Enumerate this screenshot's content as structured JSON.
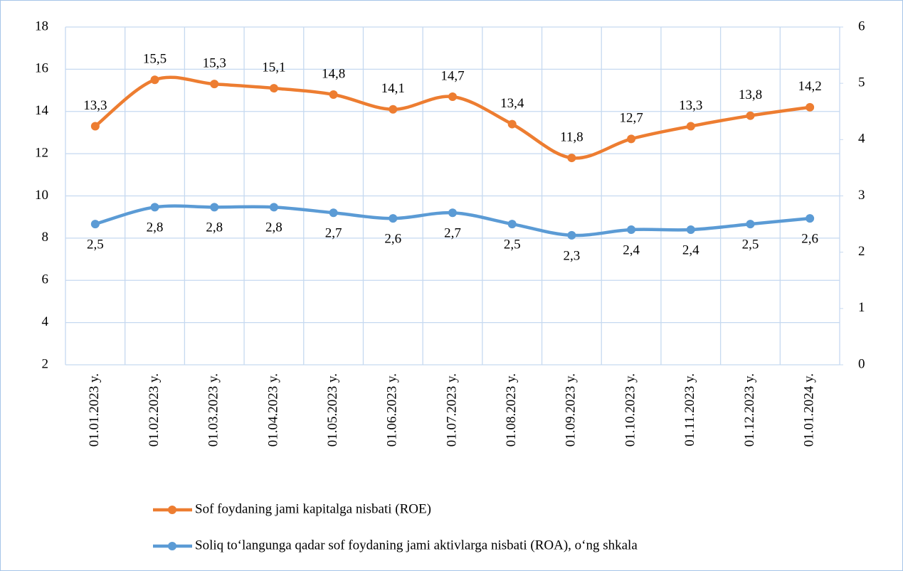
{
  "chart_data": {
    "type": "line",
    "categories": [
      "01.01.2023 y.",
      "01.02.2023 y.",
      "01.03.2023 y.",
      "01.04.2023 y.",
      "01.05.2023 y.",
      "01.06.2023 y.",
      "01.07.2023 y.",
      "01.08.2023 y.",
      "01.09.2023 y.",
      "01.10.2023 y.",
      "01.11.2023 y.",
      "01.12.2023 y.",
      "01.01.2024 y."
    ],
    "series": [
      {
        "name": "Sof foydaning jami kapitalga nisbati (ROE)",
        "color": "#ed7d31",
        "values": [
          13.3,
          15.5,
          15.3,
          15.1,
          14.8,
          14.1,
          14.7,
          13.4,
          11.8,
          12.7,
          13.3,
          13.8,
          14.2
        ],
        "value_labels": [
          "13,3",
          "15,5",
          "15,3",
          "15,1",
          "14,8",
          "14,1",
          "14,7",
          "13,4",
          "11,8",
          "12,7",
          "13,3",
          "13,8",
          "14,2"
        ]
      },
      {
        "name": "Soliq to‘langunga qadar sof foydaning jami aktivlarga nisbati (ROA), o‘ng shkala",
        "color": "#5b9bd5",
        "axis": "y2",
        "values": [
          2.5,
          2.8,
          2.8,
          2.8,
          2.7,
          2.6,
          2.7,
          2.5,
          2.3,
          2.4,
          2.4,
          2.5,
          2.6
        ],
        "value_labels": [
          "2,5",
          "2,8",
          "2,8",
          "2,8",
          "2,7",
          "2,6",
          "2,7",
          "2,5",
          "2,3",
          "2,4",
          "2,4",
          "2,5",
          "2,6"
        ]
      }
    ],
    "ylim": [
      2,
      18
    ],
    "yticks": [
      2,
      4,
      6,
      8,
      10,
      12,
      14,
      16,
      18
    ],
    "y2lim": [
      0,
      6
    ],
    "y2ticks": [
      0,
      1,
      2,
      3,
      4,
      5,
      6
    ],
    "grid": true,
    "legend": "bottom"
  }
}
